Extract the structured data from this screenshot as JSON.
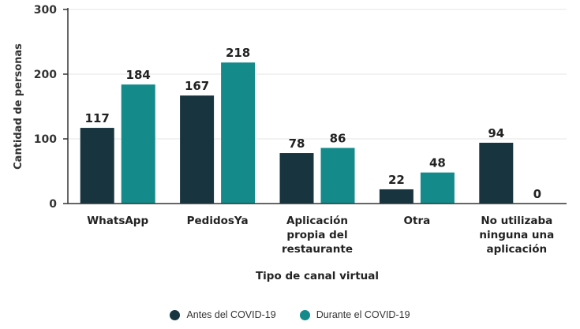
{
  "chart_data": {
    "type": "bar",
    "ylabel": "Cantidad de personas",
    "xlabel": "Tipo de canal virtual",
    "ylim": [
      0,
      300
    ],
    "yticks": [
      0,
      100,
      200,
      300
    ],
    "grid": true,
    "legend_position": "bottom",
    "categories": [
      [
        "WhatsApp"
      ],
      [
        "PedidosYa"
      ],
      [
        "Aplicación",
        "propia del",
        "restaurante"
      ],
      [
        "Otra"
      ],
      [
        "No utilizaba",
        "ninguna una",
        "aplicación"
      ]
    ],
    "series": [
      {
        "name": "Antes del COVID-19",
        "color": "#17343f",
        "values": [
          117,
          167,
          78,
          22,
          94
        ]
      },
      {
        "name": "Durante el COVID-19",
        "color": "#148a8a",
        "values": [
          184,
          218,
          86,
          48,
          0
        ]
      }
    ]
  }
}
